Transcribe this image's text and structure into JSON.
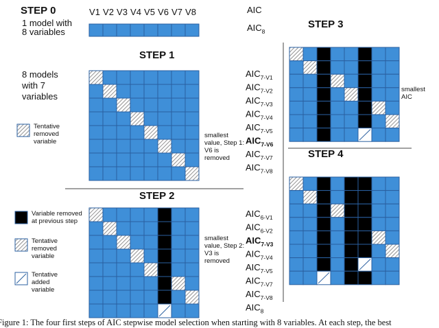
{
  "step0": {
    "title": "STEP 0",
    "description": [
      "1 model with",
      "8 variables"
    ],
    "columns": [
      "V1",
      "V2",
      "V3",
      "V4",
      "V5",
      "V6",
      "V7",
      "V8"
    ],
    "aic_header": "AIC",
    "aic": [
      {
        "main": "AIC",
        "sub": "8"
      }
    ],
    "cells": [
      "BBBBBBBB"
    ]
  },
  "step1": {
    "title": "STEP 1",
    "description": [
      "8 models",
      "with 7",
      "variables"
    ],
    "note": [
      "smallest",
      "value, Step 1:",
      "V6 is",
      "removed"
    ],
    "legend": [
      {
        "symbol": "H",
        "label": [
          "Tentative",
          "removed",
          "variable"
        ]
      }
    ],
    "aic": [
      {
        "main": "AIC",
        "sub": "7-V1"
      },
      {
        "main": "AIC",
        "sub": "7-V2"
      },
      {
        "main": "AIC",
        "sub": "7-V3"
      },
      {
        "main": "AIC",
        "sub": "7-V4"
      },
      {
        "main": "AIC",
        "sub": "7-V5"
      },
      {
        "main": "AIC",
        "sub": "7-V6",
        "bold": true
      },
      {
        "main": "AIC",
        "sub": "7-V7"
      },
      {
        "main": "AIC",
        "sub": "7-V8"
      }
    ],
    "cells": [
      "HBBBBBBB",
      "BHBBBBBB",
      "BBHBBBBB",
      "BBBHBBBB",
      "BBBBHBBB",
      "BBBBBHBB",
      "BBBBBBHB",
      "BBBBBBBH"
    ]
  },
  "step2": {
    "title": "STEP 2",
    "note": [
      "smallest",
      "value, Step 2:",
      "V3 is",
      "removed"
    ],
    "legend": [
      {
        "symbol": "K",
        "label": [
          "Variable removed",
          "at previous step"
        ]
      },
      {
        "symbol": "H",
        "label": [
          "Tentative",
          "removed",
          "variable"
        ]
      },
      {
        "symbol": "S",
        "label": [
          "Tentative",
          "added",
          "variable"
        ]
      }
    ],
    "aic": [
      {
        "main": "AIC",
        "sub": "6-V1"
      },
      {
        "main": "AIC",
        "sub": "6-V2"
      },
      {
        "main": "AIC",
        "sub": "7-V3",
        "bold": true
      },
      {
        "main": "AIC",
        "sub": "7-V4"
      },
      {
        "main": "AIC",
        "sub": "7-V5"
      },
      {
        "main": "AIC",
        "sub": "7-V7"
      },
      {
        "main": "AIC",
        "sub": "7-V8"
      },
      {
        "main": "AIC",
        "sub": "8"
      }
    ],
    "cells": [
      "HBBBBKBB",
      "BHBBBKBB",
      "BBHBBKBB",
      "BBBHBKBB",
      "BBBBHKBB",
      "BBBBBKHB",
      "BBBBBKBH",
      "BBBBBSBB"
    ]
  },
  "step3": {
    "title": "STEP 3",
    "note": [
      "smallest",
      "AIC"
    ],
    "cells": [
      "HBKBBKBB",
      "BHKBBKBB",
      "BBKHBKBB",
      "BBKBHKBB",
      "BBKBBKHB",
      "BBKBBKBH",
      "BBKBBSBB"
    ]
  },
  "step4": {
    "title": "STEP 4",
    "cells": [
      "HBKBKKBB",
      "BHKBKKBB",
      "BBKHKKBB",
      "BBKBKKBB",
      "BBKBKKHB",
      "BBKBKKBH",
      "BBKBKSBB",
      "BBSBKKBB"
    ]
  },
  "caption": "Figure 1: The four first steps of AIC stepwise model selection when starting with 8 variables. At each step, the best"
}
